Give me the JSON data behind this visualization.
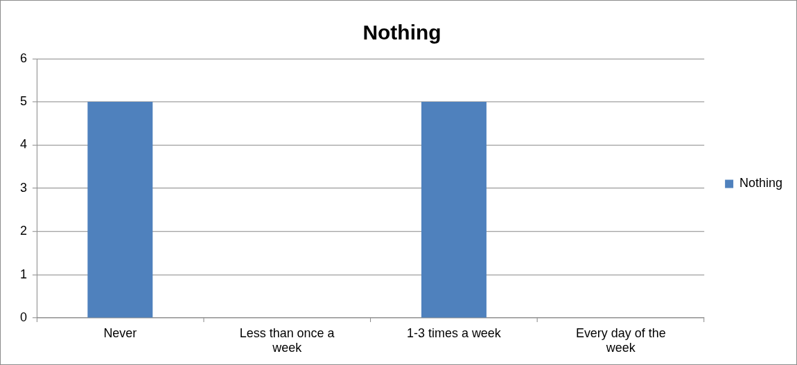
{
  "chart_data": {
    "type": "bar",
    "title": "Nothing",
    "categories": [
      "Never",
      "Less than once a week",
      "1-3 times a week",
      "Every day of the week"
    ],
    "series": [
      {
        "name": "Nothing",
        "color": "#4f81bd",
        "values": [
          5,
          0,
          5,
          0
        ]
      }
    ],
    "ylim": [
      0,
      6
    ],
    "yticks": [
      0,
      1,
      2,
      3,
      4,
      5,
      6
    ],
    "grid": "y",
    "legend": "right"
  }
}
